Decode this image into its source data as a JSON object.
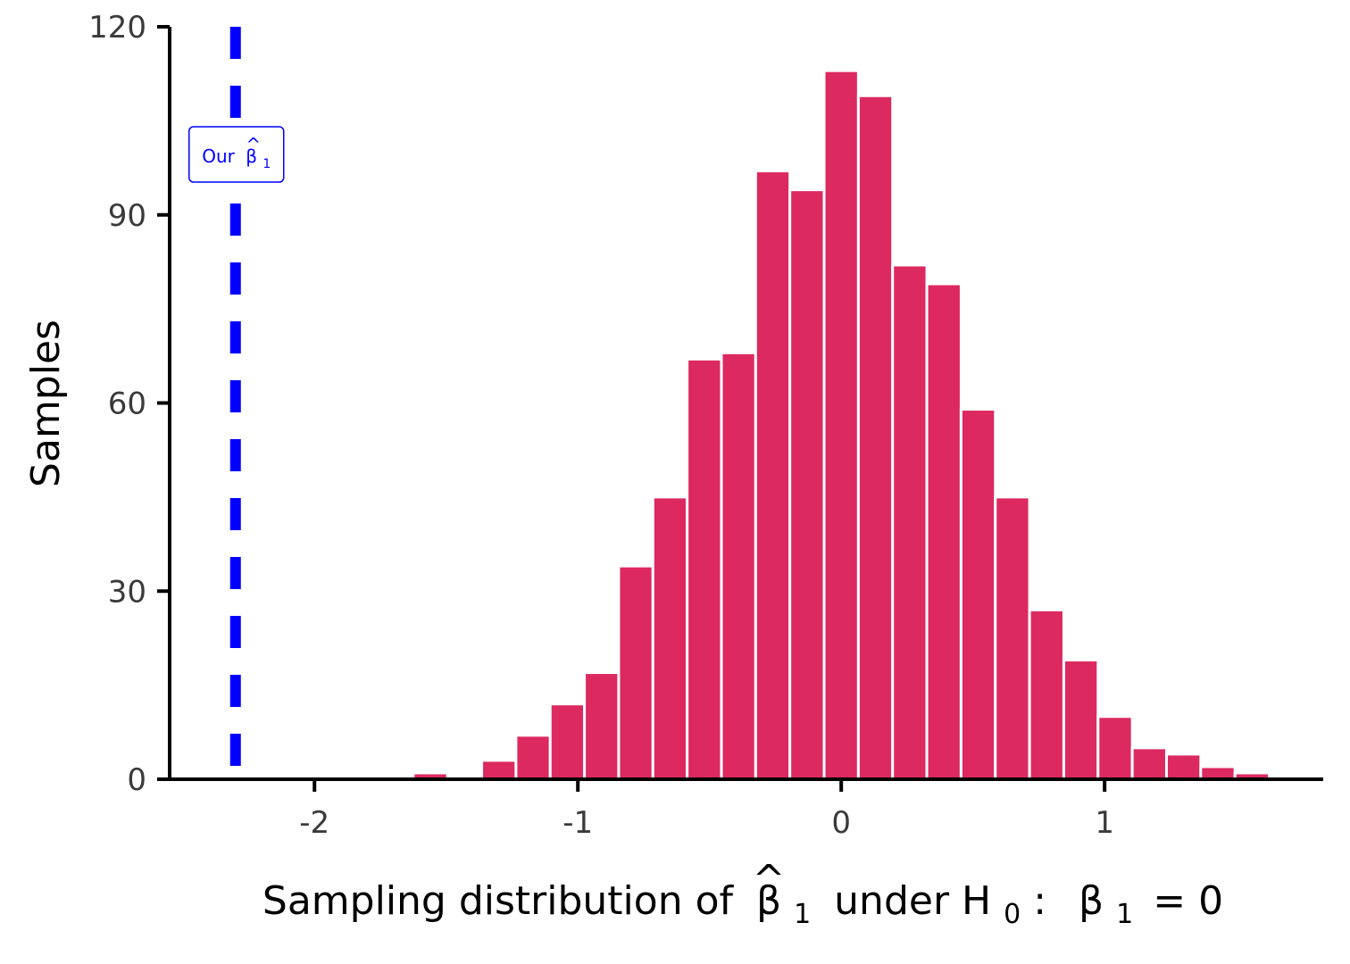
{
  "chart_data": {
    "type": "bar",
    "subtype": "histogram",
    "bar_color": "#dc2960",
    "bar_outline": "#ffffff",
    "bin_width": 0.13,
    "bins": [
      {
        "x": -1.56,
        "count": 1
      },
      {
        "x": -1.3,
        "count": 3
      },
      {
        "x": -1.17,
        "count": 7
      },
      {
        "x": -1.04,
        "count": 12
      },
      {
        "x": -0.91,
        "count": 17
      },
      {
        "x": -0.78,
        "count": 34
      },
      {
        "x": -0.65,
        "count": 45
      },
      {
        "x": -0.52,
        "count": 67
      },
      {
        "x": -0.39,
        "count": 68
      },
      {
        "x": -0.26,
        "count": 97
      },
      {
        "x": -0.13,
        "count": 94
      },
      {
        "x": 0.0,
        "count": 113
      },
      {
        "x": 0.13,
        "count": 109
      },
      {
        "x": 0.26,
        "count": 82
      },
      {
        "x": 0.39,
        "count": 79
      },
      {
        "x": 0.52,
        "count": 59
      },
      {
        "x": 0.65,
        "count": 45
      },
      {
        "x": 0.78,
        "count": 27
      },
      {
        "x": 0.91,
        "count": 19
      },
      {
        "x": 1.04,
        "count": 10
      },
      {
        "x": 1.17,
        "count": 5
      },
      {
        "x": 1.3,
        "count": 4
      },
      {
        "x": 1.43,
        "count": 2
      },
      {
        "x": 1.56,
        "count": 1
      }
    ],
    "reference_line": {
      "x": -2.3,
      "color": "#0000ff",
      "style": "dashed",
      "label": "Our",
      "label_symbol": "β",
      "label_hat": "^",
      "label_subscript": "1"
    },
    "xlim": [
      -2.55,
      1.83
    ],
    "ylim": [
      0,
      120
    ],
    "x_ticks": [
      -2,
      -1,
      0,
      1
    ],
    "x_tick_labels": [
      "-2",
      "-1",
      "0",
      "1"
    ],
    "y_ticks": [
      0,
      30,
      60,
      90,
      120
    ],
    "y_tick_labels": [
      "0",
      "30",
      "60",
      "90",
      "120"
    ],
    "ylabel": "Samples",
    "xlabel": {
      "prefix": "Sampling distribution of",
      "symbol": "β",
      "hat": "^",
      "subscript": "1",
      "middle": "under H",
      "h_subscript": "0",
      "colon": ":",
      "param": "β",
      "param_subscript": "1",
      "equals": "= 0"
    },
    "grid": false,
    "legend": "none"
  }
}
